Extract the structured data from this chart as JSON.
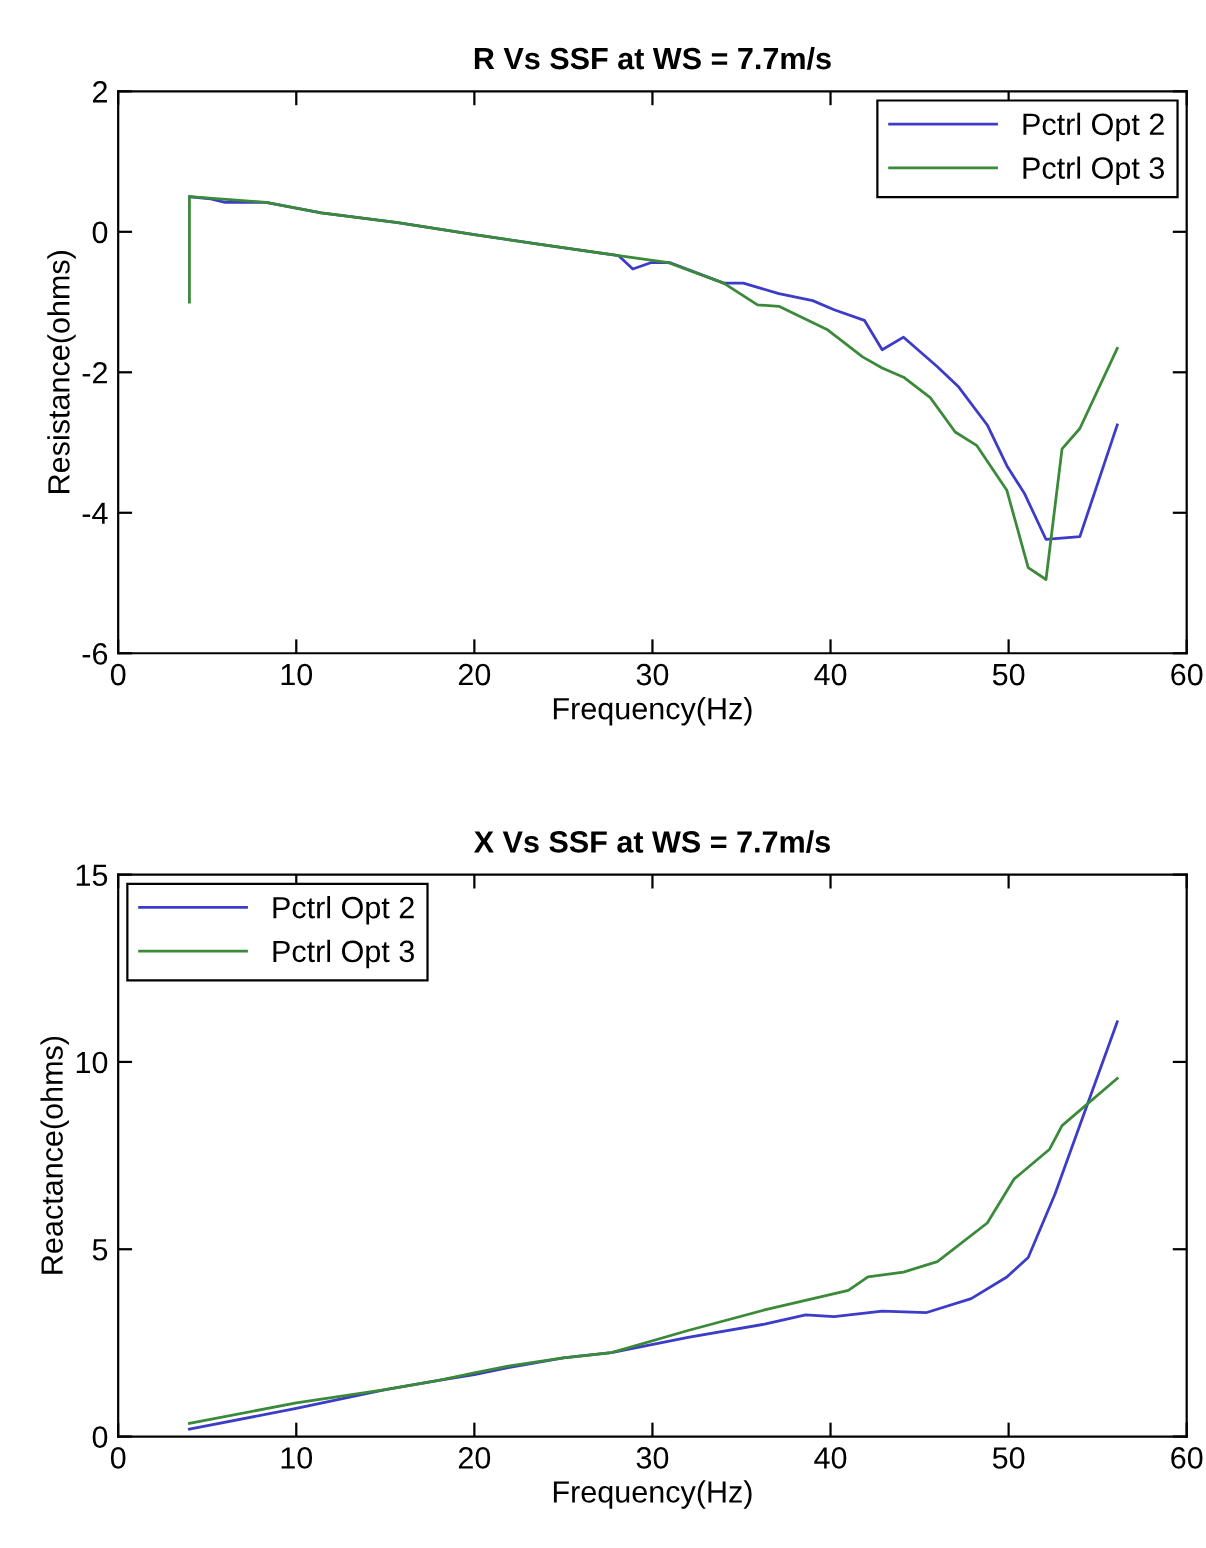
{
  "chart_data": [
    {
      "type": "line",
      "title": "R Vs SSF at WS = 7.7m/s",
      "xlabel": "Frequency(Hz)",
      "ylabel": "Resistance(ohms)",
      "xlim": [
        0,
        60
      ],
      "xticks": [
        0,
        10,
        20,
        30,
        40,
        50,
        60
      ],
      "ylim": [
        -6,
        2
      ],
      "yticks": [
        -6,
        -4,
        -2,
        0,
        2
      ],
      "grid": false,
      "legend": "top right",
      "series": [
        {
          "name": "Pctrl Opt 2",
          "color": "#3c3cc8",
          "x": [
            4,
            5.2,
            6,
            8.3,
            11.4,
            15.7,
            20,
            23.5,
            28.1,
            28.9,
            29.9,
            31,
            34,
            35.1,
            37.1,
            39,
            40.2,
            41.9,
            42.9,
            44.1,
            46,
            47.2,
            48.8,
            49.9,
            50.9,
            52.1,
            54,
            56.1
          ],
          "values": [
            0.5,
            0.47,
            0.42,
            0.42,
            0.27,
            0.13,
            -0.04,
            -0.17,
            -0.34,
            -0.53,
            -0.44,
            -0.44,
            -0.73,
            -0.73,
            -0.88,
            -0.98,
            -1.11,
            -1.26,
            -1.68,
            -1.5,
            -1.92,
            -2.21,
            -2.75,
            -3.33,
            -3.73,
            -4.38,
            -4.34,
            -2.75
          ]
        },
        {
          "name": "Pctrl Opt 3",
          "color": "#3a8a3a",
          "x": [
            4,
            4,
            8.3,
            11.4,
            15.7,
            20,
            23.5,
            28.1,
            30.9,
            34,
            35.9,
            37.1,
            39.8,
            41.8,
            42.9,
            44.1,
            45.6,
            47,
            48.2,
            49.9,
            51.1,
            52.1,
            53,
            54,
            56.1
          ],
          "values": [
            -1.0,
            0.5,
            0.42,
            0.27,
            0.13,
            -0.04,
            -0.17,
            -0.34,
            -0.44,
            -0.73,
            -1.04,
            -1.06,
            -1.39,
            -1.78,
            -1.94,
            -2.07,
            -2.36,
            -2.85,
            -3.04,
            -3.68,
            -4.78,
            -4.95,
            -3.09,
            -2.8,
            -1.66
          ]
        }
      ]
    },
    {
      "type": "line",
      "title": "X Vs SSF at WS = 7.7m/s",
      "xlabel": "Frequency(Hz)",
      "ylabel": "Reactance(ohms)",
      "xlim": [
        0,
        60
      ],
      "xticks": [
        0,
        10,
        20,
        30,
        40,
        50,
        60
      ],
      "ylim": [
        0,
        15
      ],
      "yticks": [
        0,
        5,
        10,
        15
      ],
      "grid": false,
      "legend": "top left",
      "series": [
        {
          "name": "Pctrl Opt 2",
          "color": "#3c3cc8",
          "x": [
            4,
            10,
            15,
            18,
            20,
            21.9,
            25,
            27.7,
            32,
            36.3,
            38.6,
            40.2,
            42.9,
            45.4,
            47.9,
            49.9,
            51.1,
            52.6,
            56.1
          ],
          "values": [
            0.2,
            0.75,
            1.25,
            1.5,
            1.65,
            1.84,
            2.1,
            2.24,
            2.65,
            3.0,
            3.25,
            3.2,
            3.35,
            3.31,
            3.68,
            4.26,
            4.78,
            6.47,
            11.07
          ]
        },
        {
          "name": "Pctrl Opt 3",
          "color": "#3a8a3a",
          "x": [
            4,
            10,
            15,
            18,
            20,
            21.9,
            25,
            27.7,
            32,
            36.3,
            41,
            42.1,
            44.1,
            46,
            48.8,
            50.3,
            52.3,
            53,
            56.1
          ],
          "values": [
            0.35,
            0.9,
            1.25,
            1.5,
            1.7,
            1.88,
            2.1,
            2.24,
            2.83,
            3.38,
            3.9,
            4.26,
            4.39,
            4.67,
            5.7,
            6.87,
            7.67,
            8.3,
            9.56
          ]
        }
      ]
    }
  ]
}
